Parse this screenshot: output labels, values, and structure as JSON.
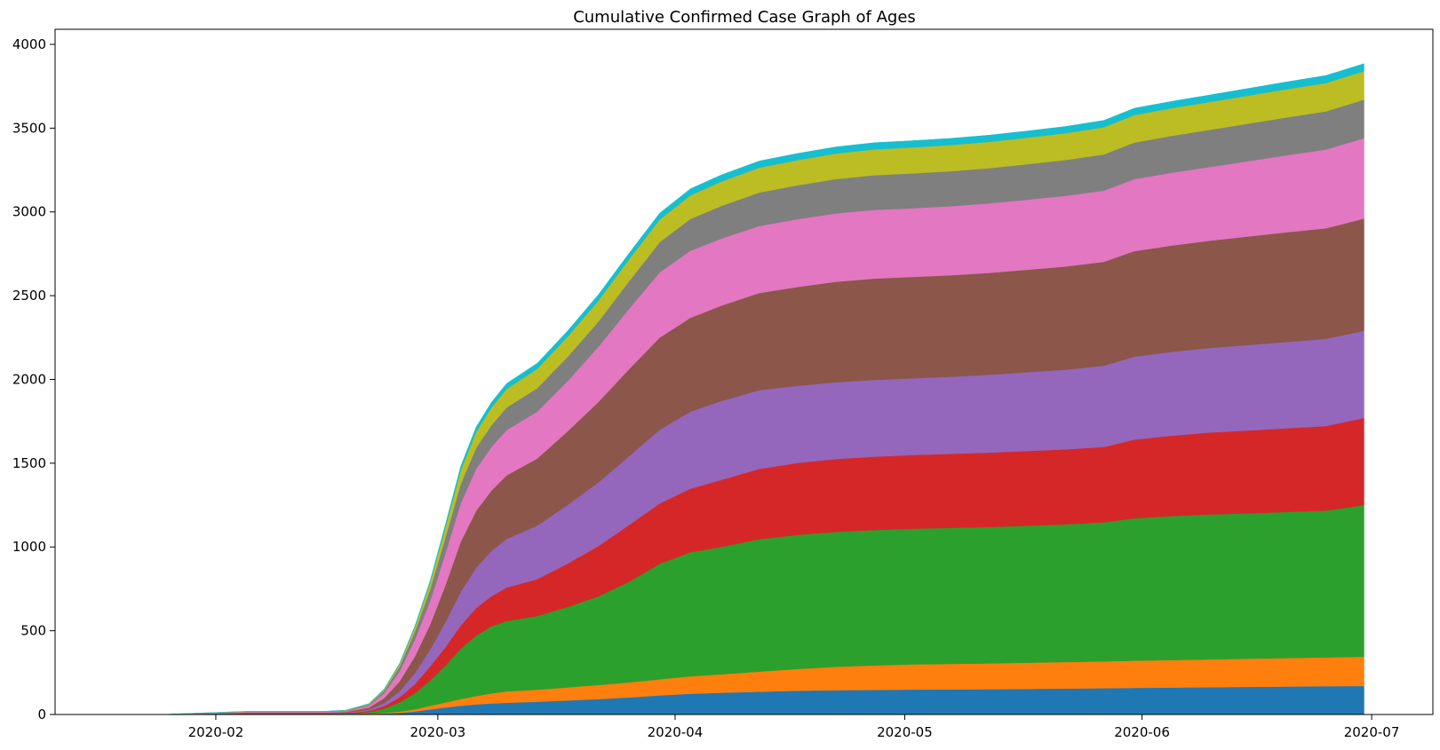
{
  "chart_data": {
    "type": "area",
    "stacked": true,
    "title": "Cumulative Confirmed Case Graph of Ages",
    "xlabel": "",
    "ylabel": "",
    "xlim": [
      "2020-01-11",
      "2020-07-09"
    ],
    "ylim": [
      0,
      4090
    ],
    "grid": false,
    "legend": "none",
    "x_ticks": [
      "2020-02-01",
      "2020-03-01",
      "2020-04-01",
      "2020-05-01",
      "2020-06-01",
      "2020-07-01"
    ],
    "x_tick_labels": [
      "2020-02",
      "2020-03",
      "2020-04",
      "2020-05",
      "2020-06",
      "2020-07"
    ],
    "y_ticks": [
      0,
      500,
      1000,
      1500,
      2000,
      2500,
      3000,
      3500,
      4000
    ],
    "y_tick_labels": [
      "0",
      "500",
      "1000",
      "1500",
      "2000",
      "2500",
      "3000",
      "3500",
      "4000"
    ],
    "x": [
      "2020-01-20",
      "2020-01-25",
      "2020-01-31",
      "2020-02-05",
      "2020-02-10",
      "2020-02-15",
      "2020-02-18",
      "2020-02-21",
      "2020-02-23",
      "2020-02-25",
      "2020-02-27",
      "2020-02-29",
      "2020-03-02",
      "2020-03-04",
      "2020-03-06",
      "2020-03-08",
      "2020-03-10",
      "2020-03-14",
      "2020-03-18",
      "2020-03-22",
      "2020-03-26",
      "2020-03-30",
      "2020-04-03",
      "2020-04-07",
      "2020-04-12",
      "2020-04-17",
      "2020-04-22",
      "2020-04-27",
      "2020-05-02",
      "2020-05-07",
      "2020-05-12",
      "2020-05-17",
      "2020-05-22",
      "2020-05-27",
      "2020-05-31",
      "2020-06-05",
      "2020-06-10",
      "2020-06-15",
      "2020-06-20",
      "2020-06-25",
      "2020-06-30"
    ],
    "series": [
      {
        "color": "#1f77b4",
        "values": [
          0,
          0,
          1,
          2,
          2,
          2,
          2,
          3,
          5,
          10,
          18,
          30,
          42,
          52,
          60,
          66,
          70,
          76,
          84,
          92,
          102,
          114,
          124,
          130,
          136,
          142,
          145,
          147,
          149,
          150,
          151,
          153,
          155,
          157,
          159,
          161,
          163,
          165,
          167,
          169,
          170
        ]
      },
      {
        "color": "#ff7f0e",
        "values": [
          0,
          0,
          0,
          1,
          1,
          1,
          1,
          2,
          4,
          7,
          13,
          22,
          30,
          40,
          50,
          60,
          68,
          72,
          78,
          84,
          90,
          96,
          104,
          110,
          120,
          130,
          140,
          146,
          150,
          152,
          154,
          156,
          158,
          160,
          162,
          164,
          166,
          168,
          170,
          172,
          175
        ]
      },
      {
        "color": "#2ca02c",
        "values": [
          0,
          0,
          1,
          2,
          2,
          2,
          3,
          8,
          25,
          55,
          95,
          150,
          220,
          300,
          360,
          400,
          420,
          440,
          480,
          530,
          600,
          690,
          740,
          760,
          790,
          800,
          805,
          808,
          810,
          812,
          814,
          818,
          822,
          830,
          850,
          860,
          865,
          868,
          872,
          876,
          905
        ]
      },
      {
        "color": "#d62728",
        "values": [
          0,
          0,
          1,
          2,
          2,
          2,
          3,
          8,
          16,
          30,
          55,
          85,
          110,
          140,
          165,
          180,
          200,
          220,
          260,
          300,
          340,
          360,
          380,
          400,
          420,
          430,
          435,
          438,
          440,
          442,
          444,
          446,
          448,
          450,
          470,
          480,
          490,
          495,
          500,
          505,
          520
        ]
      },
      {
        "color": "#9467bd",
        "values": [
          0,
          0,
          1,
          2,
          2,
          2,
          3,
          8,
          18,
          35,
          65,
          100,
          150,
          200,
          240,
          270,
          290,
          320,
          350,
          380,
          410,
          440,
          460,
          470,
          470,
          460,
          458,
          458,
          458,
          460,
          465,
          470,
          475,
          485,
          495,
          500,
          505,
          510,
          515,
          520,
          520
        ]
      },
      {
        "color": "#8c564b",
        "values": [
          0,
          0,
          2,
          3,
          3,
          3,
          4,
          12,
          30,
          60,
          100,
          150,
          220,
          300,
          340,
          360,
          380,
          400,
          440,
          480,
          520,
          550,
          560,
          570,
          580,
          590,
          600,
          605,
          605,
          606,
          608,
          612,
          616,
          620,
          630,
          635,
          640,
          648,
          655,
          660,
          670
        ]
      },
      {
        "color": "#e377c2",
        "values": [
          0,
          0,
          2,
          3,
          3,
          3,
          4,
          12,
          30,
          60,
          100,
          140,
          190,
          230,
          250,
          260,
          270,
          280,
          300,
          330,
          360,
          390,
          400,
          400,
          400,
          405,
          408,
          410,
          410,
          412,
          415,
          418,
          422,
          425,
          430,
          435,
          440,
          450,
          460,
          470,
          480
        ]
      },
      {
        "color": "#7f7f7f",
        "values": [
          0,
          0,
          1,
          2,
          2,
          2,
          3,
          6,
          14,
          28,
          48,
          70,
          95,
          115,
          125,
          130,
          135,
          140,
          145,
          150,
          165,
          180,
          190,
          195,
          200,
          202,
          205,
          207,
          208,
          209,
          210,
          212,
          214,
          216,
          218,
          220,
          222,
          224,
          226,
          228,
          230
        ]
      },
      {
        "color": "#bcbd22",
        "values": [
          0,
          0,
          1,
          1,
          1,
          1,
          2,
          4,
          8,
          15,
          25,
          40,
          60,
          80,
          95,
          105,
          110,
          115,
          120,
          125,
          130,
          135,
          140,
          145,
          148,
          150,
          152,
          154,
          155,
          156,
          157,
          158,
          160,
          162,
          164,
          165,
          166,
          167,
          168,
          169,
          170
        ]
      },
      {
        "color": "#17becf",
        "values": [
          0,
          0,
          1,
          1,
          1,
          1,
          1,
          2,
          3,
          5,
          8,
          12,
          18,
          25,
          30,
          32,
          33,
          34,
          35,
          36,
          37,
          38,
          40,
          40,
          40,
          40,
          40,
          40,
          40,
          40,
          40,
          40,
          40,
          41,
          41,
          41,
          42,
          43,
          44,
          45,
          45
        ]
      }
    ]
  }
}
